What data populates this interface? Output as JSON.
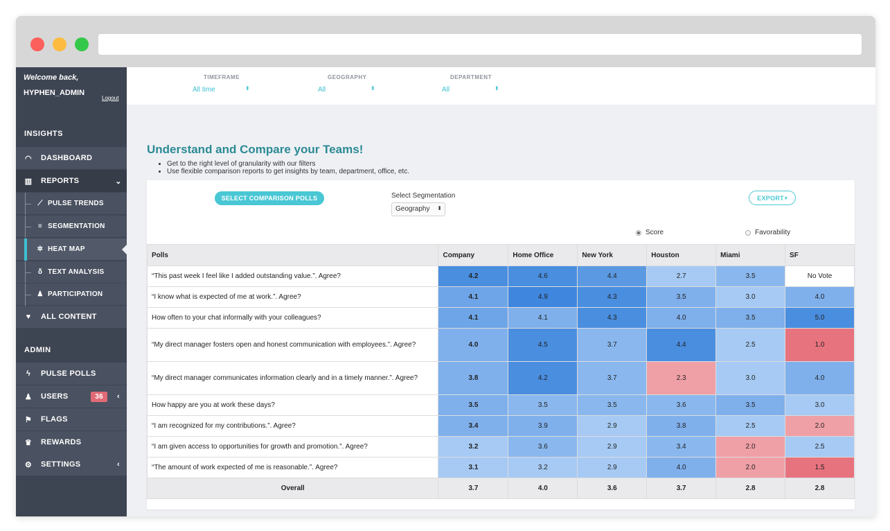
{
  "sidebar": {
    "welcome": "Welcome back,",
    "username": "HYPHEN_ADMIN",
    "logout": "Logout",
    "insights_header": "INSIGHTS",
    "admin_header": "ADMIN",
    "dashboard": "DASHBOARD",
    "reports": "REPORTS",
    "pulse_trends": "PULSE TRENDS",
    "segmentation": "SEGMENTATION",
    "heat_map": "HEAT MAP",
    "text_analysis": "TEXT ANALYSIS",
    "participation": "PARTICIPATION",
    "all_content": "ALL CONTENT",
    "pulse_polls": "PULSE POLLS",
    "users": "USERS",
    "users_badge": "36",
    "flags": "FLAGS",
    "rewards": "REWARDS",
    "settings": "SETTINGS"
  },
  "filters": {
    "timeframe_label": "TIMEFRAME",
    "timeframe_value": "All time",
    "geography_label": "GEOGRAPHY",
    "geography_value": "All",
    "department_label": "DEPARTMENT",
    "department_value": "All"
  },
  "main": {
    "title": "Understand and Compare your Teams!",
    "bullet1": "Get to the right level of granularity with our filters",
    "bullet2": "Use flexible comparison reports to get insights by team, department, office, etc.",
    "select_polls_button": "SELECT COMPARISON POLLS",
    "select_segmentation_label": "Select Segmentation",
    "segmentation_value": "Geography",
    "export_button": "EXPORT",
    "radio_score": "Score",
    "radio_favorability": "Favorability"
  },
  "table": {
    "headers": [
      "Polls",
      "Company",
      "Home Office",
      "New York",
      "Houston",
      "Miami",
      "SF"
    ],
    "rows": [
      {
        "poll": "“This past week I feel like I added outstanding value.”. Agree?",
        "values": [
          "4.2",
          "4.6",
          "4.4",
          "2.7",
          "3.5",
          "No Vote"
        ],
        "colors": [
          "#4a8ee0",
          "#4a8ee0",
          "#5b9ae2",
          "#a6caf3",
          "#8ab8ee",
          "#ffffff"
        ]
      },
      {
        "poll": "“I know what is expected of me at work.”. Agree?",
        "values": [
          "4.1",
          "4.9",
          "4.3",
          "3.5",
          "3.0",
          "4.0"
        ],
        "colors": [
          "#6ea5e8",
          "#3f86de",
          "#4a8ee0",
          "#7fb0ec",
          "#a6caf3",
          "#7fb0ec"
        ]
      },
      {
        "poll": "How often to your chat informally with your colleagues?",
        "values": [
          "4.1",
          "4.1",
          "4.3",
          "4.0",
          "3.5",
          "5.0"
        ],
        "colors": [
          "#6ea5e8",
          "#7fb0ec",
          "#4a8ee0",
          "#7fb0ec",
          "#7fb0ec",
          "#4a8ee0"
        ]
      },
      {
        "poll": "“My direct manager fosters open and honest communication with employees.”. Agree?",
        "values": [
          "4.0",
          "4.5",
          "3.7",
          "4.4",
          "2.5",
          "1.0"
        ],
        "colors": [
          "#7fb0ec",
          "#4a8ee0",
          "#8ab8ee",
          "#4a8ee0",
          "#a6caf3",
          "#e7737f"
        ]
      },
      {
        "poll": "“My direct manager communicates information clearly and in a timely manner.”. Agree?",
        "values": [
          "3.8",
          "4.2",
          "3.7",
          "2.3",
          "3.0",
          "4.0"
        ],
        "colors": [
          "#7fb0ec",
          "#4a8ee0",
          "#8ab8ee",
          "#efa0a6",
          "#a6caf3",
          "#7fb0ec"
        ]
      },
      {
        "poll": "How happy are you at work these days?",
        "values": [
          "3.5",
          "3.5",
          "3.5",
          "3.6",
          "3.5",
          "3.0"
        ],
        "colors": [
          "#7fb0ec",
          "#8ab8ee",
          "#8ab8ee",
          "#8ab8ee",
          "#7fb0ec",
          "#a6caf3"
        ]
      },
      {
        "poll": "“I am recognized for my contributions.”. Agree?",
        "values": [
          "3.4",
          "3.9",
          "2.9",
          "3.8",
          "2.5",
          "2.0"
        ],
        "colors": [
          "#7fb0ec",
          "#7fb0ec",
          "#a6caf3",
          "#7fb0ec",
          "#a6caf3",
          "#efa0a6"
        ]
      },
      {
        "poll": "“I am given access to opportunities for growth and promotion.”. Agree?",
        "values": [
          "3.2",
          "3.6",
          "2.9",
          "3.4",
          "2.0",
          "2.5"
        ],
        "colors": [
          "#a6caf3",
          "#8ab8ee",
          "#a6caf3",
          "#8ab8ee",
          "#efa0a6",
          "#a6caf3"
        ]
      },
      {
        "poll": "“The amount of work expected of me is reasonable.”. Agree?",
        "values": [
          "3.1",
          "3.2",
          "2.9",
          "4.0",
          "2.0",
          "1.5"
        ],
        "colors": [
          "#a6caf3",
          "#a6caf3",
          "#a6caf3",
          "#7fb0ec",
          "#efa0a6",
          "#e7737f"
        ]
      }
    ],
    "overall": {
      "label": "Overall",
      "values": [
        "3.7",
        "4.0",
        "3.6",
        "3.7",
        "2.8",
        "2.8"
      ]
    }
  }
}
